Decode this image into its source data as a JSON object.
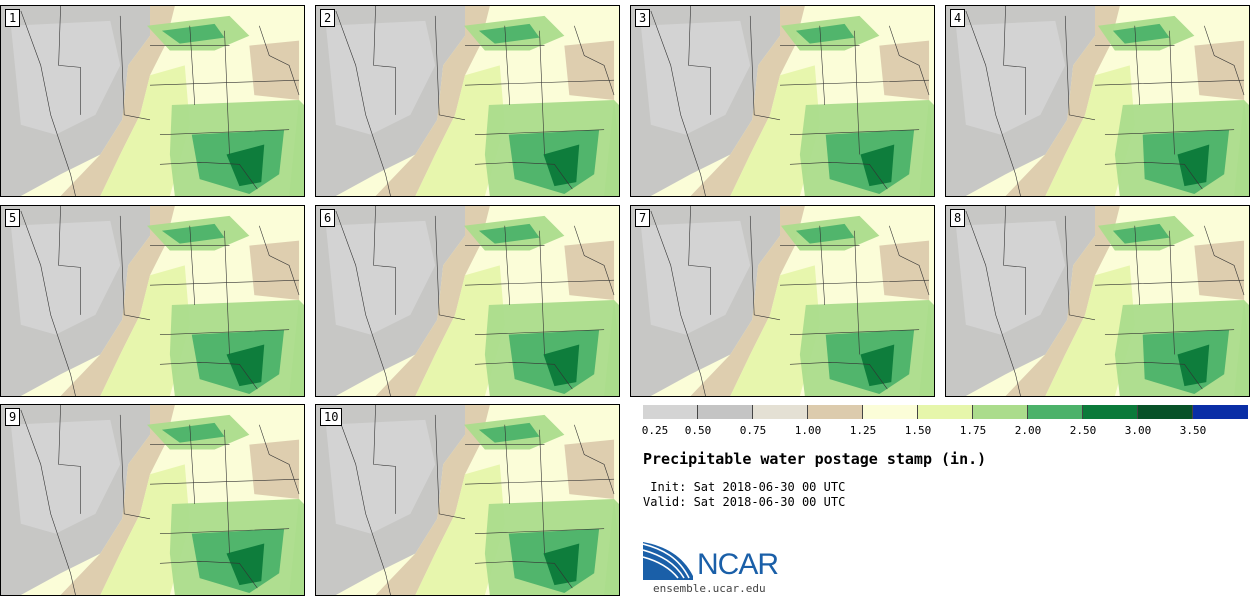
{
  "panels": [
    {
      "label": "1"
    },
    {
      "label": "2"
    },
    {
      "label": "3"
    },
    {
      "label": "4"
    },
    {
      "label": "5"
    },
    {
      "label": "6"
    },
    {
      "label": "7"
    },
    {
      "label": "8"
    },
    {
      "label": "9"
    },
    {
      "label": "10"
    }
  ],
  "legend": {
    "colors": [
      "#d4d4d4",
      "#c4c4c4",
      "#e4e0d4",
      "#dccbad",
      "#fbfdd8",
      "#e6f6ab",
      "#abdc8c",
      "#4cb26a",
      "#0b7a3a",
      "#075128",
      "#0a2ea6"
    ],
    "labels": [
      "0.25",
      "0.50",
      "0.75",
      "1.00",
      "1.25",
      "1.50",
      "1.75",
      "2.00",
      "2.50",
      "3.00",
      "3.50"
    ]
  },
  "title": "Precipitable water postage stamp (in.)",
  "init_line": " Init: Sat 2018-06-30 00 UTC",
  "valid_line": "Valid: Sat 2018-06-30 00 UTC",
  "logo": {
    "text": "NCAR",
    "url": "ensemble.ucar.edu",
    "color": "#1a5fa8"
  }
}
